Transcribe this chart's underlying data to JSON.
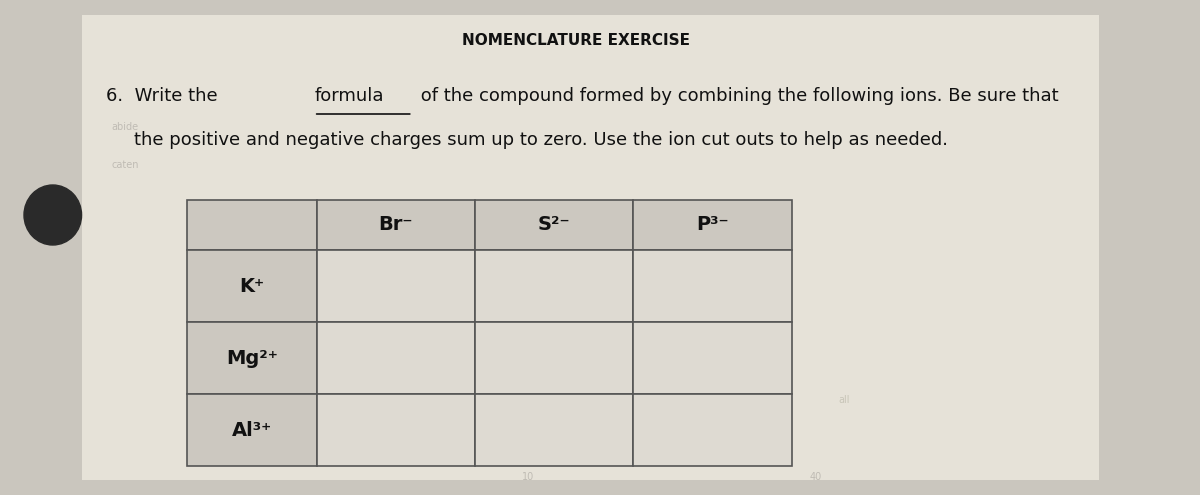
{
  "title": "NOMENCLATURE EXERCISE",
  "col_headers": [
    "Br⁻",
    "S²⁻",
    "P³⁻"
  ],
  "row_headers": [
    "K⁺",
    "Mg²⁺",
    "Al³⁺"
  ],
  "bg_color": "#cac6be",
  "page_color": "#e6e2d8",
  "table_cell_color": "#dedad2",
  "header_cell_color": "#ccc8c0",
  "table_border_color": "#555555",
  "title_fontsize": 11,
  "text_fontsize": 13,
  "table_fontsize": 14
}
